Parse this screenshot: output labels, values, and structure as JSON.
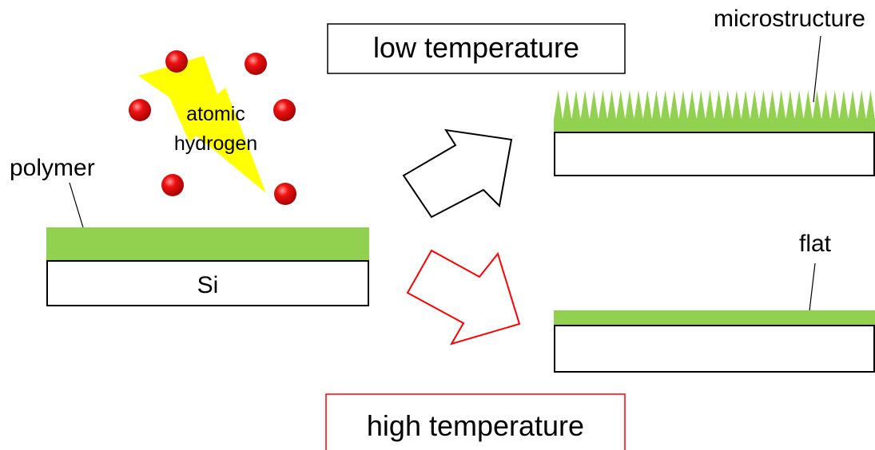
{
  "labels": {
    "atomic_line1": "atomic",
    "atomic_line2": "hydrogen",
    "polymer": "polymer",
    "si": "Si",
    "low_temperature": "low temperature",
    "high_temperature": "high temperature",
    "microstructure": "microstructure",
    "flat": "flat"
  },
  "colors": {
    "polymer_green": "#92d050",
    "hydrogen_red": "#e00000",
    "lightning_yellow": "#ffff00",
    "low_temp_arrow": "#000000",
    "high_temp_arrow": "#ff0000"
  },
  "icons": {
    "lightning": "lightning-bolt-icon",
    "hydrogen_atom": "hydrogen-atom-icon"
  }
}
